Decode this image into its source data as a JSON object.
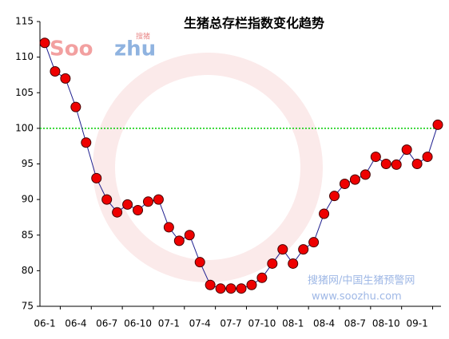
{
  "chart_data": {
    "type": "line",
    "title": "生猪总存栏指数变化趋势",
    "watermarks": [
      "Soo",
      "zhu",
      "搜猪",
      "搜猪网/中国生猪预警网",
      "www.soozhu.com"
    ],
    "categories": [
      "06-1",
      null,
      null,
      "06-4",
      null,
      null,
      "06-7",
      null,
      null,
      "06-10",
      null,
      null,
      "07-1",
      null,
      null,
      "07-4",
      null,
      null,
      "07-7",
      null,
      null,
      "07-10",
      null,
      null,
      "08-1",
      null,
      null,
      "08-4",
      null,
      null,
      "08-7",
      null,
      null,
      "08-10",
      null,
      null,
      "09-1",
      null,
      null
    ],
    "series": [
      {
        "color": "#1f1f8f",
        "marker_color": "#ee0000",
        "values": [
          112,
          108,
          107,
          103,
          98,
          93,
          90,
          88.2,
          89.3,
          88.5,
          89.7,
          90,
          86.1,
          84.2,
          85,
          81.2,
          78,
          77.5,
          77.5,
          77.5,
          78,
          79,
          81,
          83,
          81,
          83,
          84,
          88,
          90.5,
          92.2,
          92.8,
          93.5,
          96,
          95,
          94.9,
          97,
          95,
          96,
          100.5
        ]
      }
    ],
    "reference_line": {
      "value": 100,
      "color": "#00cc00"
    },
    "ylim": [
      75,
      115
    ],
    "yticks": [
      75,
      80,
      85,
      90,
      95,
      100,
      105,
      110,
      115
    ]
  }
}
